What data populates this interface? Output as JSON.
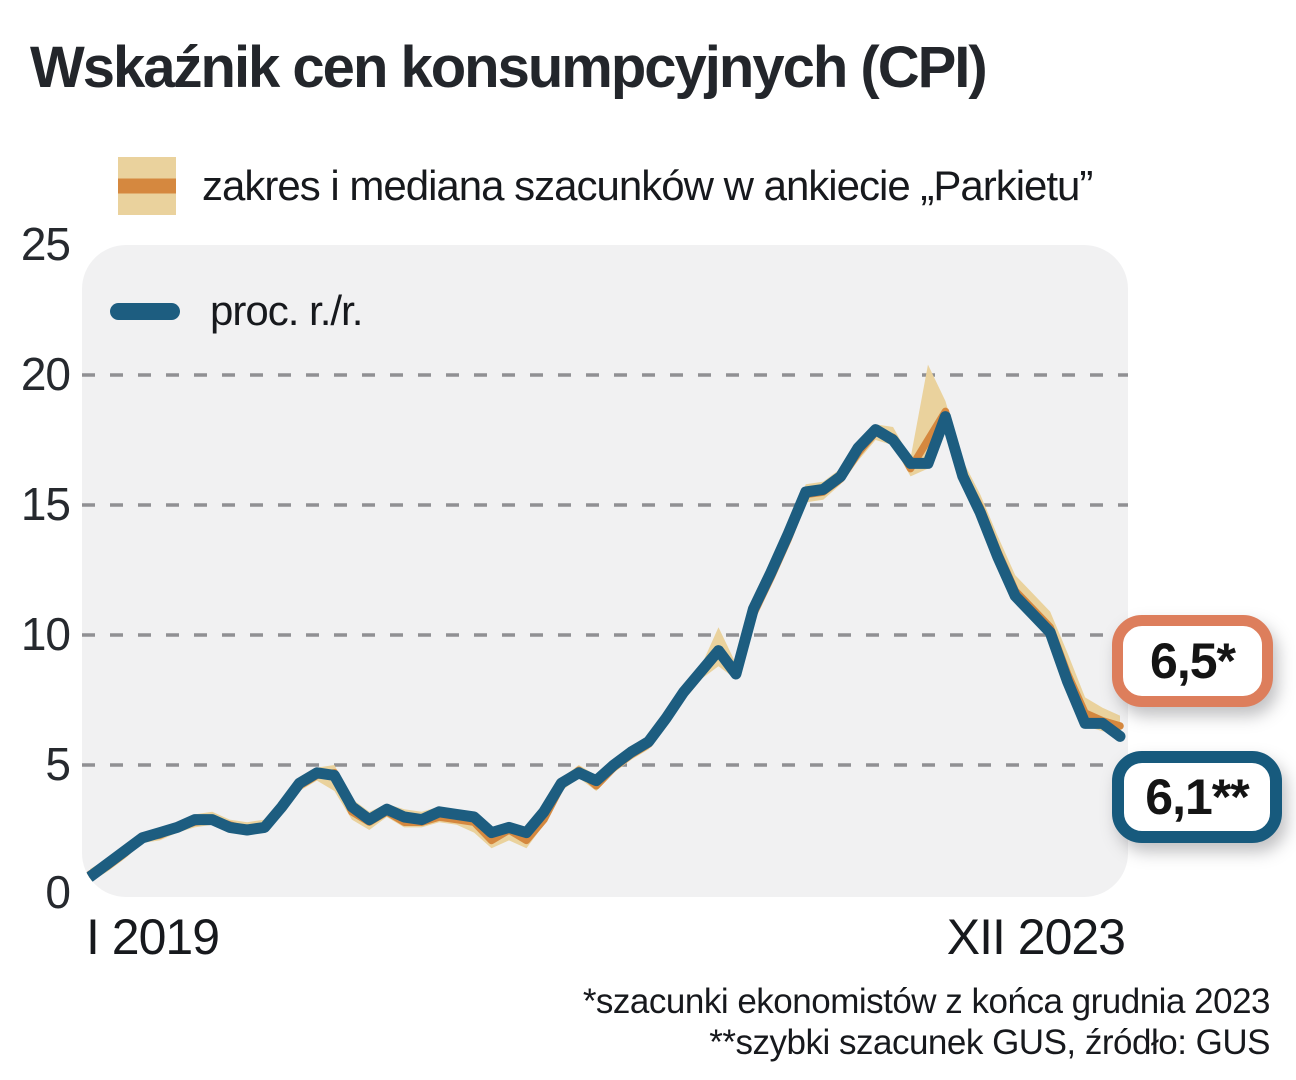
{
  "title": "Wskaźnik cen konsumpcyjnych (CPI)",
  "legend": {
    "band_label": "zakres i mediana szacunków w ankiecie „Parkietu”",
    "line_label": "proc. r./r."
  },
  "axis": {
    "y_ticks": [
      "0",
      "5",
      "10",
      "15",
      "20",
      "25"
    ],
    "x_start": "I 2019",
    "x_end": "XII 2023"
  },
  "annotations": {
    "estimate_badge": "6,5*",
    "actual_badge": "6,1**"
  },
  "footnotes": [
    "*szacunki ekonomistów z końca grudnia 2023",
    "**szybki szacunek GUS, źródło: GUS"
  ],
  "colors": {
    "line": "#1d5d80",
    "median": "#d5883f",
    "band": "#ead29d",
    "grid": "#909093",
    "plot_bg": "#f1f1f2",
    "estimate_accent": "#dd7e5c",
    "actual_accent": "#175a7d"
  },
  "chart_data": {
    "type": "line",
    "title": "Wskaźnik cen konsumpcyjnych (CPI)",
    "x_unit": "month",
    "x_range_labels": [
      "I 2019",
      "XII 2023"
    ],
    "ylabel": "proc. r./r.",
    "ylim": [
      0,
      25
    ],
    "gridlines": [
      5,
      10,
      15,
      20
    ],
    "legend_position": "top-left",
    "series": [
      {
        "id": "actual",
        "name": "proc. r./r.",
        "values": [
          0.7,
          1.2,
          1.7,
          2.2,
          2.4,
          2.6,
          2.9,
          2.9,
          2.6,
          2.5,
          2.6,
          3.4,
          4.3,
          4.7,
          4.6,
          3.4,
          2.9,
          3.3,
          3.0,
          2.9,
          3.2,
          3.1,
          3.0,
          2.4,
          2.6,
          2.4,
          3.2,
          4.3,
          4.7,
          4.4,
          5.0,
          5.5,
          5.9,
          6.8,
          7.8,
          8.6,
          9.4,
          8.5,
          11.0,
          12.4,
          13.9,
          15.5,
          15.6,
          16.1,
          17.2,
          17.9,
          17.5,
          16.6,
          16.6,
          18.4,
          16.1,
          14.7,
          13.0,
          11.5,
          10.8,
          10.1,
          8.2,
          6.6,
          6.6,
          6.1
        ]
      },
      {
        "id": "median",
        "name": "mediana szacunków w ankiecie „Parkietu”",
        "values": [
          0.8,
          1.1,
          1.6,
          2.2,
          2.3,
          2.6,
          2.8,
          2.9,
          2.7,
          2.5,
          2.6,
          3.3,
          4.2,
          4.6,
          4.7,
          3.2,
          2.8,
          3.2,
          2.8,
          2.8,
          3.0,
          2.9,
          2.8,
          2.1,
          2.5,
          2.1,
          2.9,
          4.2,
          4.8,
          4.2,
          4.9,
          5.4,
          5.8,
          6.7,
          7.7,
          8.5,
          9.3,
          8.6,
          10.8,
          12.2,
          13.7,
          15.4,
          15.5,
          16.0,
          17.0,
          17.8,
          17.6,
          16.4,
          17.5,
          18.6,
          16.2,
          14.9,
          13.2,
          11.7,
          11.0,
          10.3,
          8.5,
          7.0,
          6.7,
          6.5
        ]
      },
      {
        "id": "low",
        "name": "zakres szacunków — dół",
        "values": [
          0.5,
          0.9,
          1.4,
          2.0,
          2.1,
          2.4,
          2.6,
          2.7,
          2.4,
          2.3,
          2.4,
          3.1,
          4.0,
          4.4,
          4.0,
          2.9,
          2.5,
          3.0,
          2.6,
          2.6,
          2.8,
          2.7,
          2.4,
          1.8,
          2.1,
          1.8,
          2.7,
          4.0,
          4.5,
          4.0,
          4.7,
          5.2,
          5.6,
          6.5,
          7.5,
          8.3,
          8.8,
          8.3,
          10.5,
          12.0,
          13.5,
          15.1,
          15.2,
          15.8,
          16.7,
          17.5,
          17.3,
          16.1,
          16.4,
          17.9,
          15.8,
          14.5,
          12.8,
          11.3,
          10.6,
          9.9,
          8.1,
          6.5,
          6.3,
          6.2
        ]
      },
      {
        "id": "high",
        "name": "zakres szacunków — góra",
        "values": [
          1.0,
          1.4,
          1.9,
          2.4,
          2.6,
          2.8,
          3.1,
          3.2,
          2.9,
          2.8,
          2.9,
          3.6,
          4.5,
          4.9,
          5.0,
          3.7,
          3.2,
          3.5,
          3.3,
          3.2,
          3.4,
          3.3,
          3.2,
          2.6,
          2.8,
          2.5,
          3.4,
          4.5,
          5.0,
          4.6,
          5.2,
          5.7,
          6.1,
          7.0,
          8.0,
          8.8,
          10.3,
          8.9,
          11.2,
          12.6,
          14.0,
          15.8,
          15.9,
          16.4,
          17.4,
          18.1,
          18.0,
          16.8,
          20.4,
          19.0,
          16.7,
          15.4,
          13.8,
          12.3,
          11.6,
          10.9,
          9.3,
          7.6,
          7.2,
          6.9
        ]
      }
    ]
  }
}
